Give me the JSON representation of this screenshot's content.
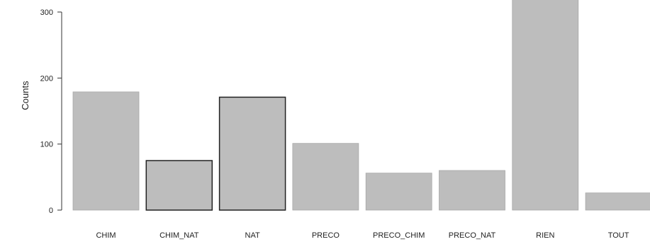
{
  "chart_data": {
    "type": "bar",
    "title": "",
    "xlabel": "",
    "ylabel": "Counts",
    "categories": [
      "CHIM",
      "CHIM_NAT",
      "NAT",
      "PRECO",
      "PRECO_CHIM",
      "PRECO_NAT",
      "RIEN",
      "TOUT"
    ],
    "values": [
      179,
      75,
      171,
      101,
      56,
      60,
      322,
      26
    ],
    "ylim": [
      0,
      300
    ],
    "y_ticks": [
      0,
      100,
      200,
      300
    ],
    "grid": false,
    "bar_color": "#bdbdbd",
    "dark_edge_categories": [
      "CHIM_NAT",
      "NAT"
    ],
    "edge_color": "#222222"
  }
}
